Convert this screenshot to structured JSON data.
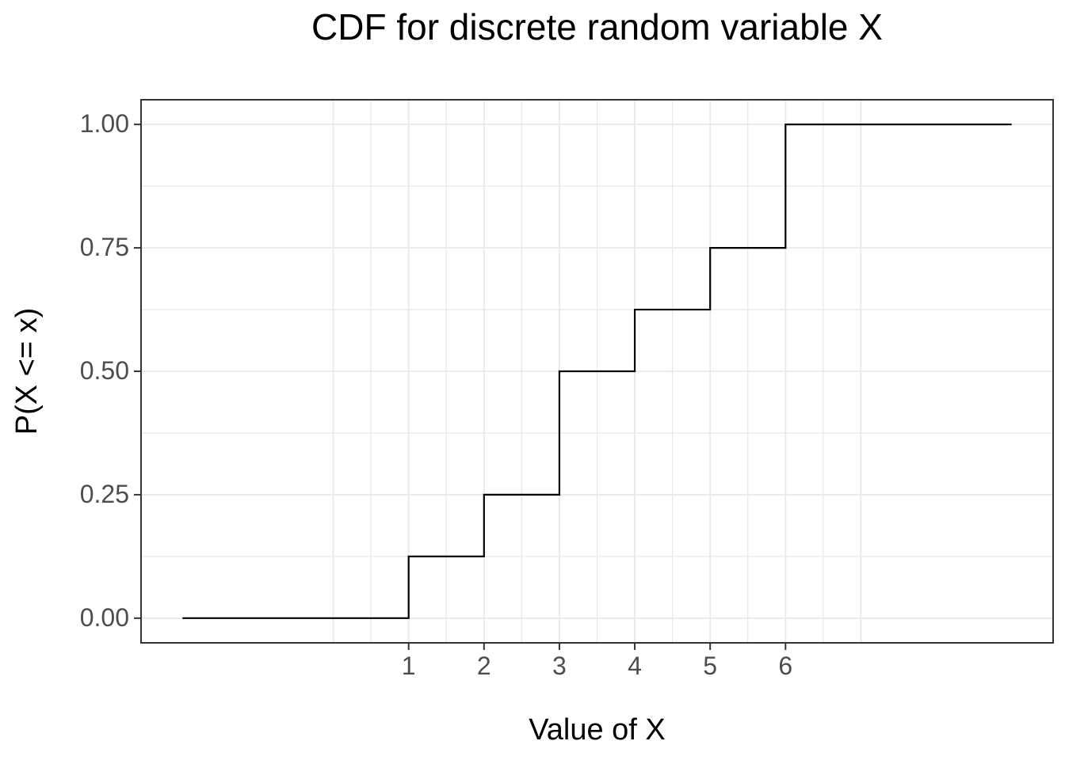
{
  "chart_data": {
    "type": "line",
    "subtype": "step-cdf",
    "title": "CDF for discrete random variable X",
    "xlabel": "Value of X",
    "ylabel": "P(X <= x)",
    "x_range": [
      -2.55,
      9.55
    ],
    "y_range": [
      -0.05,
      1.05
    ],
    "x_ticks": [
      {
        "value": 1,
        "label": "1"
      },
      {
        "value": 2,
        "label": "2"
      },
      {
        "value": 3,
        "label": "3"
      },
      {
        "value": 4,
        "label": "4"
      },
      {
        "value": 5,
        "label": "5"
      },
      {
        "value": 6,
        "label": "6"
      }
    ],
    "y_ticks": [
      {
        "value": 0.0,
        "label": "0.00"
      },
      {
        "value": 0.25,
        "label": "0.25"
      },
      {
        "value": 0.5,
        "label": "0.50"
      },
      {
        "value": 0.75,
        "label": "0.75"
      },
      {
        "value": 1.0,
        "label": "1.00"
      }
    ],
    "grid": {
      "visible": true,
      "v_major": [
        0,
        1,
        2,
        3,
        4,
        5,
        6,
        7
      ],
      "v_minor": [
        0.5,
        1.5,
        2.5,
        3.5,
        4.5,
        5.5,
        6.5
      ],
      "h_major": [
        0,
        0.25,
        0.5,
        0.75,
        1
      ],
      "h_minor": [
        0.125,
        0.375,
        0.625,
        0.875
      ]
    },
    "legend": "none",
    "series": [
      {
        "name": "cdf-step",
        "points": [
          {
            "x": -2,
            "y": 0
          },
          {
            "x": 1,
            "y": 0.125
          },
          {
            "x": 2,
            "y": 0.25
          },
          {
            "x": 3,
            "y": 0.5
          },
          {
            "x": 4,
            "y": 0.625
          },
          {
            "x": 5,
            "y": 0.75
          },
          {
            "x": 6,
            "y": 1.0
          }
        ],
        "end_x": 9,
        "color": "#000000"
      }
    ],
    "colors": {
      "panel_background": "#FFFFFF",
      "grid": "#E9E9E9",
      "axis": "#333333",
      "tick_label": "#4D4D4D",
      "text": "#000000"
    }
  }
}
